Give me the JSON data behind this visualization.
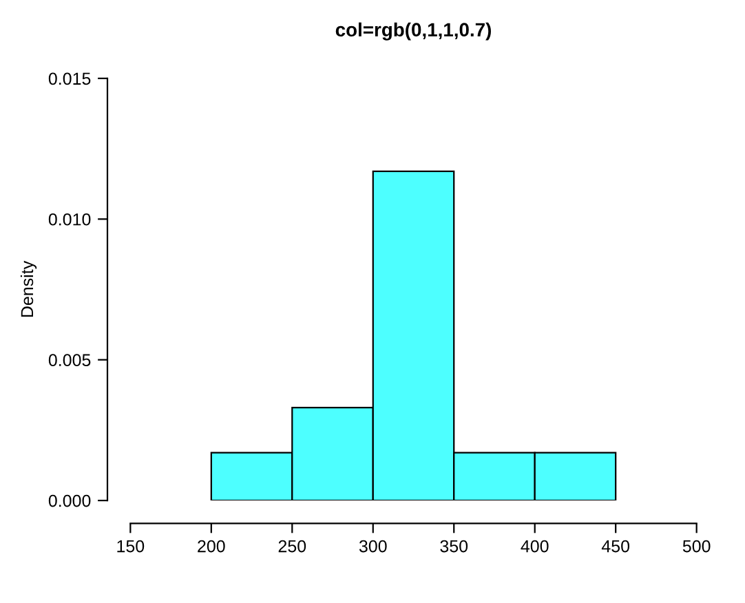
{
  "chart_data": {
    "type": "histogram",
    "title": "col=rgb(0,1,1,0.7)",
    "ylabel": "Density",
    "bins": [
      200,
      250,
      300,
      350,
      400,
      450
    ],
    "values": [
      0.0017,
      0.0033,
      0.0117,
      0.0017,
      0.0017
    ],
    "color": "#4dffff",
    "xlim": [
      150,
      500
    ],
    "xticks": [
      150,
      200,
      250,
      300,
      350,
      400,
      450,
      500
    ],
    "ylim": [
      0,
      0.015
    ],
    "yticks": [
      {
        "value": 0,
        "label": "0.000"
      },
      {
        "value": 0.005,
        "label": "0.005"
      },
      {
        "value": 0.01,
        "label": "0.010"
      },
      {
        "value": 0.015,
        "label": "0.015"
      }
    ],
    "grid": false
  }
}
